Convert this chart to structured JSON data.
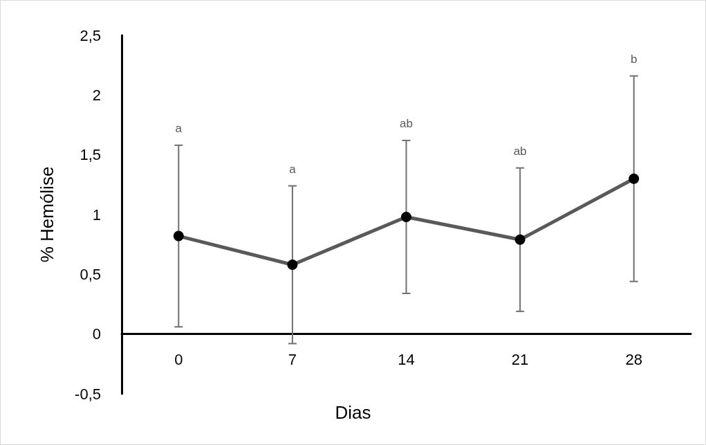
{
  "chart_data": {
    "type": "line",
    "xlabel": "Dias",
    "ylabel": "% Hemólise",
    "categories": [
      "0",
      "7",
      "14",
      "21",
      "28"
    ],
    "series": [
      {
        "color": "#595959",
        "values": [
          0.82,
          0.58,
          0.98,
          0.79,
          1.3
        ],
        "errors": [
          0.76,
          0.66,
          0.64,
          0.6,
          0.86
        ]
      }
    ],
    "ylim": [
      -0.5,
      2.5
    ],
    "yticks": [
      {
        "value": -0.5,
        "label": "-0,5"
      },
      0,
      {
        "value": 0.5,
        "label": "0,5"
      },
      1,
      {
        "value": 1.5,
        "label": "1,5"
      },
      2,
      {
        "value": 2.5,
        "label": "2,5"
      }
    ],
    "marker": "circle",
    "line_style": "solid",
    "annotations": [
      "a",
      "a",
      "ab",
      "ab",
      "b"
    ]
  }
}
